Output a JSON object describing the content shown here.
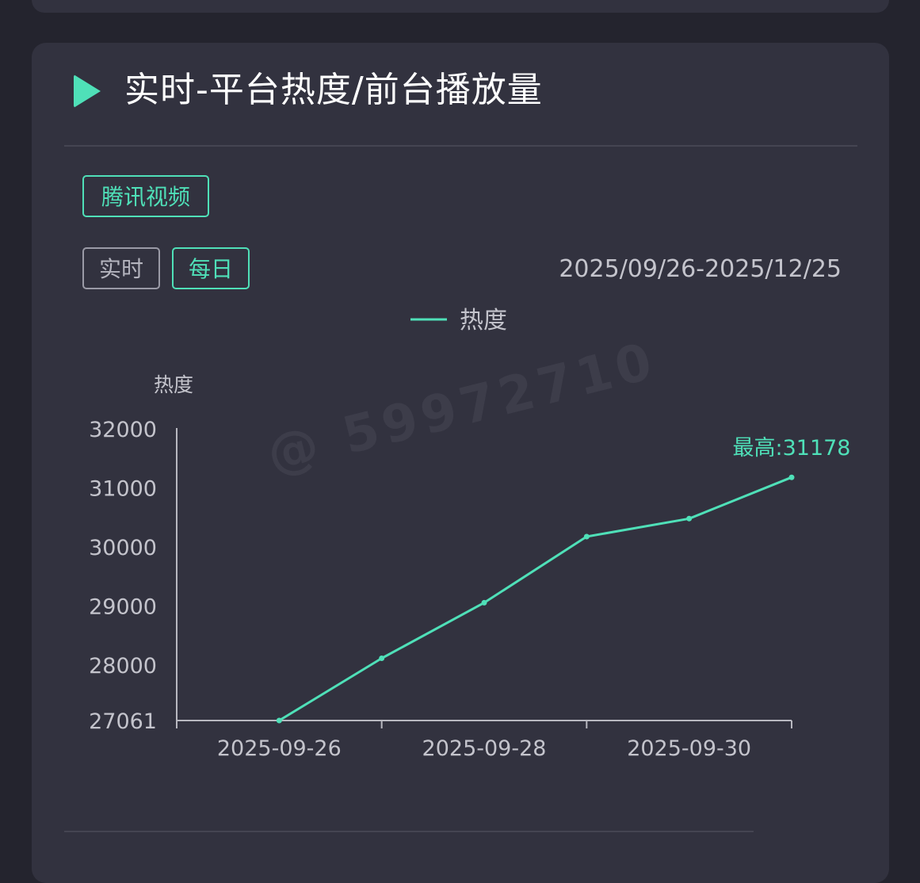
{
  "card": {
    "title": "实时-平台热度/前台播放量"
  },
  "platform": {
    "label": "腾讯视频"
  },
  "modes": {
    "realtime_label": "实时",
    "daily_label": "每日"
  },
  "date_range": "2025/09/26-2025/12/25",
  "watermark": "@ 59972710",
  "colors": {
    "accent": "#4fe0b8",
    "card_bg": "#32323f",
    "page_bg": "#24242e"
  },
  "chart_data": {
    "type": "line",
    "title": "",
    "ylabel": "热度",
    "xlabel": "",
    "legend": {
      "position": "top-center",
      "entries": [
        "热度"
      ]
    },
    "ylim": [
      27061,
      32000
    ],
    "y_ticks": [
      27061,
      28000,
      29000,
      30000,
      31000,
      32000
    ],
    "x_ticks": [
      "2025-09-26",
      "2025-09-28",
      "2025-09-30"
    ],
    "xlim": [
      "2025-09-25",
      "2025-10-01"
    ],
    "series": [
      {
        "name": "热度",
        "x": [
          "2025-09-26",
          "2025-09-27",
          "2025-09-28",
          "2025-09-29",
          "2025-09-30",
          "2025-10-01"
        ],
        "values": [
          27061,
          28115,
          29055,
          30175,
          30480,
          31178
        ],
        "color": "#4fe0b8"
      }
    ],
    "annotations": [
      {
        "text": "最高:31178",
        "x": "2025-10-01",
        "y": 31178
      }
    ],
    "grid": false
  }
}
